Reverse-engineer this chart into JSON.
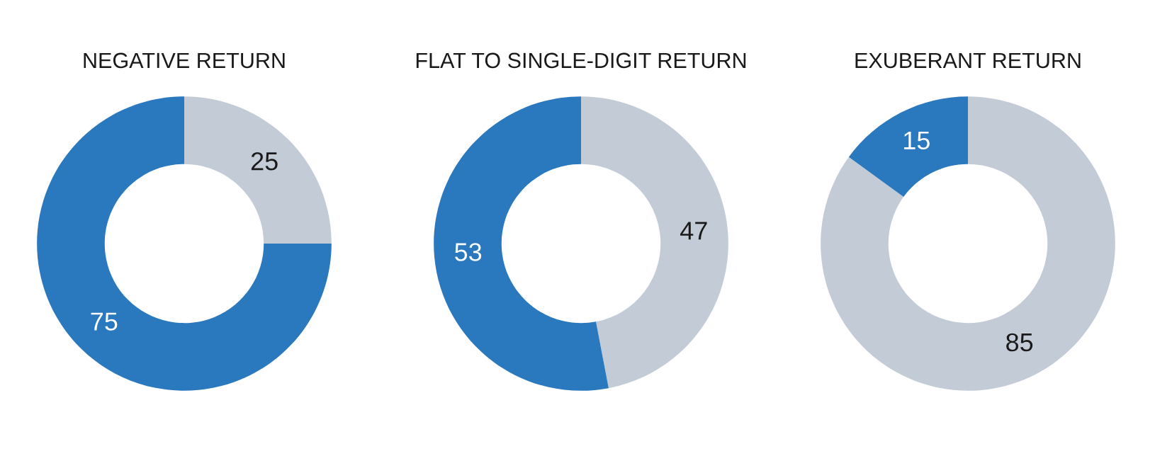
{
  "chart_data": [
    {
      "type": "donut",
      "title": "NEGATIVE RETURN",
      "categories": [
        null,
        null
      ],
      "values": [
        25,
        75
      ],
      "colors": [
        "#c3ccd6",
        "#2a78be"
      ],
      "data_labels": true
    },
    {
      "type": "donut",
      "title": "FLAT TO SINGLE-DIGIT RETURN",
      "categories": [
        null,
        null
      ],
      "values": [
        47,
        53
      ],
      "colors": [
        "#c3ccd6",
        "#2a78be"
      ],
      "data_labels": true
    },
    {
      "type": "donut",
      "title": "EXUBERANT RETURN",
      "categories": [
        null,
        null
      ],
      "values": [
        85,
        15
      ],
      "colors": [
        "#c3ccd6",
        "#2a78be"
      ],
      "data_labels": true
    }
  ]
}
